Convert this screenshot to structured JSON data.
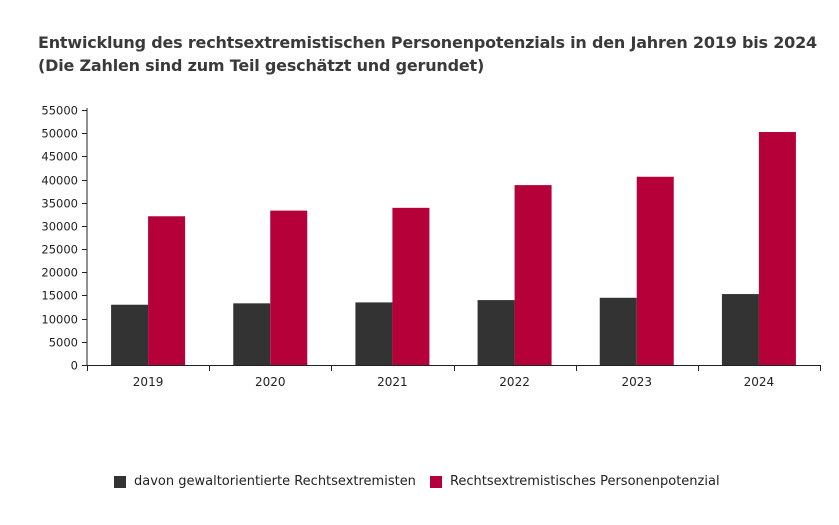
{
  "chart_data": {
    "type": "bar",
    "title": "Entwicklung des rechtsextremistischen Personenpotenzials in den Jahren 2019 bis 2024",
    "subtitle": "(Die Zahlen sind zum Teil geschätzt und gerundet)",
    "xlabel": "",
    "ylabel": "",
    "categories": [
      "2019",
      "2020",
      "2021",
      "2022",
      "2023",
      "2024"
    ],
    "series": [
      {
        "name": "davon gewaltorientierte Rechtsextremisten",
        "color": "#333333",
        "values": [
          13000,
          13300,
          13500,
          14000,
          14500,
          15300
        ]
      },
      {
        "name": "Rechtsextremistisches Personenpotenzial",
        "color": "#b5003a",
        "values": [
          32080,
          33300,
          33900,
          38800,
          40600,
          50250
        ]
      }
    ],
    "ylim": [
      0,
      55000
    ],
    "yticks": [
      0,
      5000,
      10000,
      15000,
      20000,
      25000,
      30000,
      35000,
      40000,
      45000,
      50000,
      55000
    ],
    "grid": false,
    "legend": "bottom-left"
  }
}
